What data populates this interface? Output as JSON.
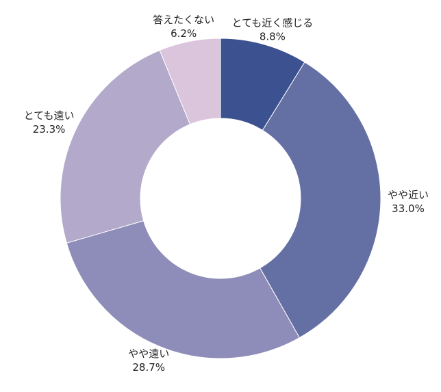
{
  "chart_data": {
    "type": "pie",
    "donut": true,
    "legend": "none",
    "categories": [
      "とても近く感じる",
      "やや近い",
      "やや遠い",
      "とても遠い",
      "答えたくない"
    ],
    "values": [
      8.8,
      33.0,
      28.7,
      23.3,
      6.2
    ],
    "value_labels": [
      "8.8%",
      "33.0%",
      "28.7%",
      "23.3%",
      "6.2%"
    ],
    "colors": [
      "#3b5190",
      "#6470a4",
      "#8e8cb8",
      "#b2a9cb",
      "#dbc5dd"
    ]
  }
}
